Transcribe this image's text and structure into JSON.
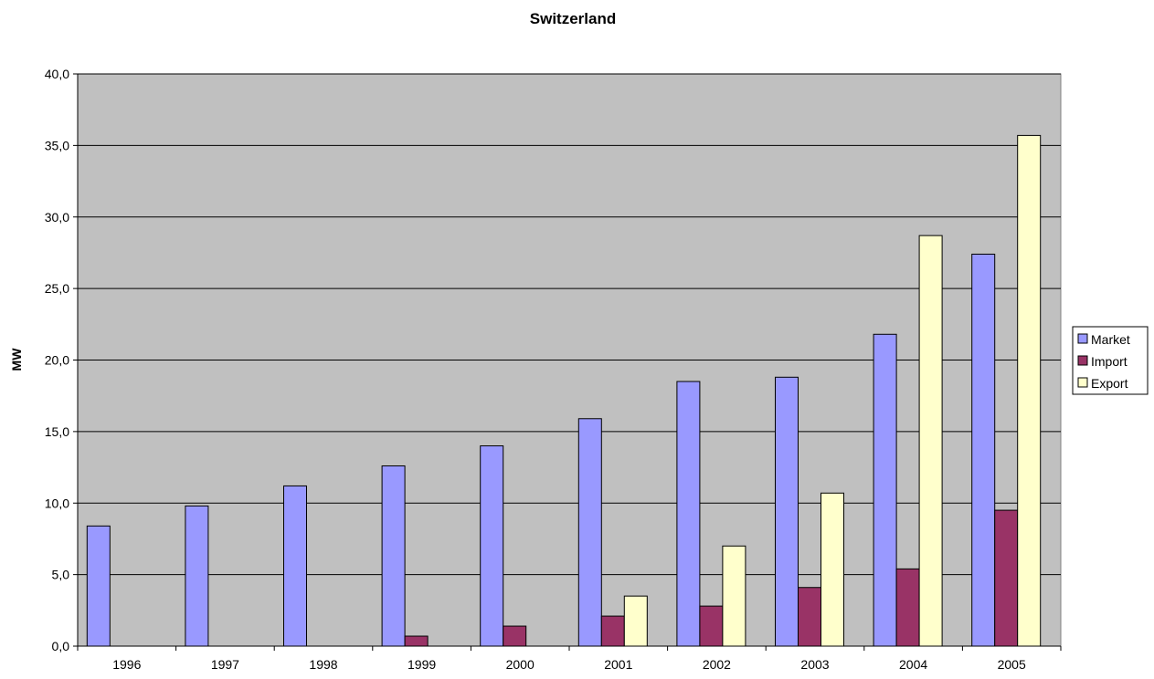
{
  "chart_data": {
    "type": "bar",
    "title": "Switzerland",
    "xlabel": "",
    "ylabel": "MW",
    "ylim": [
      0,
      40
    ],
    "yticks": [
      "0,0",
      "5,0",
      "10,0",
      "15,0",
      "20,0",
      "25,0",
      "30,0",
      "35,0",
      "40,0"
    ],
    "ytick_values": [
      0,
      5,
      10,
      15,
      20,
      25,
      30,
      35,
      40
    ],
    "categories": [
      "1996",
      "1997",
      "1998",
      "1999",
      "2000",
      "2001",
      "2002",
      "2003",
      "2004",
      "2005"
    ],
    "series": [
      {
        "name": "Market",
        "color": "#9999ff",
        "values": [
          8.4,
          9.8,
          11.2,
          12.6,
          14.0,
          15.9,
          18.5,
          18.8,
          21.8,
          27.4
        ]
      },
      {
        "name": "Import",
        "color": "#993366",
        "values": [
          0,
          0,
          0,
          0.7,
          1.4,
          2.1,
          2.8,
          4.1,
          5.4,
          9.5
        ]
      },
      {
        "name": "Export",
        "color": "#ffffcc",
        "values": [
          0,
          0,
          0,
          0,
          0,
          3.5,
          7.0,
          10.7,
          28.7,
          35.7
        ]
      }
    ],
    "grid": true,
    "plot_background": "#c0c0c0",
    "legend_position": "right"
  }
}
